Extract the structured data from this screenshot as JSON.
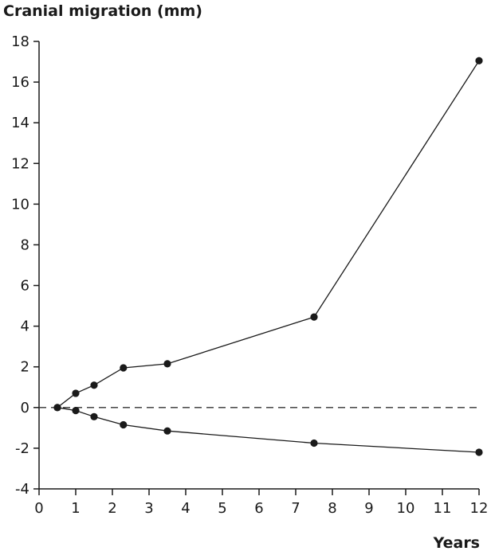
{
  "chart_data": {
    "type": "line",
    "ylabel": "Cranial migration (mm)",
    "xlabel": "Years",
    "xlim": [
      0,
      12
    ],
    "ylim": [
      -4,
      18
    ],
    "x_ticks": [
      0,
      1,
      2,
      3,
      4,
      5,
      6,
      7,
      8,
      9,
      10,
      11,
      12
    ],
    "y_ticks": [
      -4,
      -2,
      0,
      2,
      4,
      6,
      8,
      10,
      12,
      14,
      16,
      18
    ],
    "reference_line": {
      "y": 0,
      "style": "dashed"
    },
    "grid": false,
    "series": [
      {
        "x": [
          0.5,
          1,
          1.5,
          2.3,
          3.5,
          7.5,
          12
        ],
        "values": [
          0,
          0.7,
          1.1,
          1.95,
          2.15,
          4.45,
          17.05
        ]
      },
      {
        "x": [
          0.5,
          1,
          1.5,
          2.3,
          3.5,
          7.5,
          12
        ],
        "values": [
          0,
          -0.15,
          -0.45,
          -0.85,
          -1.15,
          -1.75,
          -2.2
        ]
      }
    ],
    "color": "#1a1a1a"
  }
}
